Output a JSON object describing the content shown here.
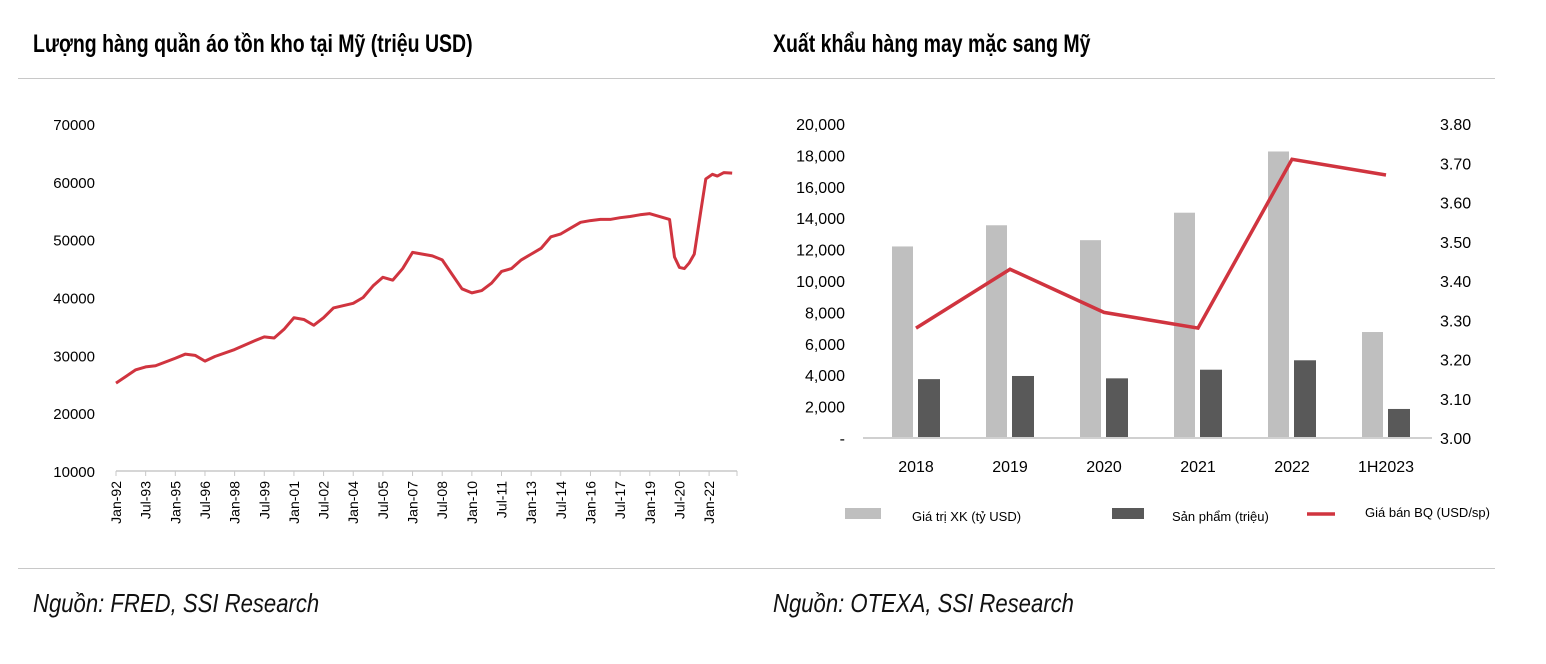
{
  "left": {
    "title": "Lượng hàng quần áo tồn kho tại Mỹ (triệu USD)",
    "source": "Nguồn: FRED, SSI Research"
  },
  "right": {
    "title": "Xuất khẩu hàng may mặc sang Mỹ",
    "source": "Nguồn: OTEXA, SSI Research"
  },
  "chart_data": [
    {
      "type": "line",
      "title": "Lượng hàng quần áo tồn kho tại Mỹ (triệu USD)",
      "ylim": [
        10000,
        70000
      ],
      "yticks": [
        "10000",
        "20000",
        "30000",
        "40000",
        "50000",
        "60000",
        "70000"
      ],
      "xticks": [
        "Jan-92",
        "Jul-93",
        "Jan-95",
        "Jul-96",
        "Jan-98",
        "Jul-99",
        "Jan-01",
        "Jul-02",
        "Jan-04",
        "Jul-05",
        "Jan-07",
        "Jul-08",
        "Jan-10",
        "Jul-11",
        "Jan-13",
        "Jul-14",
        "Jan-16",
        "Jul-17",
        "Jan-19",
        "Jul-20",
        "Jan-22"
      ],
      "grid": false,
      "color": "#d0343f",
      "points": [
        [
          "1992-01",
          25200
        ],
        [
          "1993-01",
          27500
        ],
        [
          "1993-07",
          28000
        ],
        [
          "1994-01",
          28200
        ],
        [
          "1995-01",
          29500
        ],
        [
          "1995-07",
          30200
        ],
        [
          "1996-01",
          30000
        ],
        [
          "1996-07",
          29000
        ],
        [
          "1997-01",
          29800
        ],
        [
          "1998-01",
          31000
        ],
        [
          "1999-01",
          32500
        ],
        [
          "1999-07",
          33200
        ],
        [
          "2000-01",
          33000
        ],
        [
          "2000-07",
          34500
        ],
        [
          "2001-01",
          36500
        ],
        [
          "2001-07",
          36200
        ],
        [
          "2002-01",
          35200
        ],
        [
          "2002-07",
          36500
        ],
        [
          "2003-01",
          38200
        ],
        [
          "2004-01",
          39000
        ],
        [
          "2004-07",
          40000
        ],
        [
          "2005-01",
          42000
        ],
        [
          "2005-07",
          43500
        ],
        [
          "2006-01",
          43000
        ],
        [
          "2006-07",
          45000
        ],
        [
          "2007-01",
          47800
        ],
        [
          "2007-07",
          47500
        ],
        [
          "2008-01",
          47200
        ],
        [
          "2008-07",
          46500
        ],
        [
          "2009-01",
          44000
        ],
        [
          "2009-07",
          41500
        ],
        [
          "2010-01",
          40800
        ],
        [
          "2010-07",
          41200
        ],
        [
          "2011-01",
          42500
        ],
        [
          "2011-07",
          44500
        ],
        [
          "2012-01",
          45000
        ],
        [
          "2012-07",
          46500
        ],
        [
          "2013-01",
          47500
        ],
        [
          "2013-07",
          48500
        ],
        [
          "2014-01",
          50500
        ],
        [
          "2014-07",
          51000
        ],
        [
          "2015-01",
          52000
        ],
        [
          "2015-07",
          53000
        ],
        [
          "2016-01",
          53300
        ],
        [
          "2016-07",
          53500
        ],
        [
          "2017-01",
          53500
        ],
        [
          "2017-07",
          53800
        ],
        [
          "2018-01",
          54000
        ],
        [
          "2018-07",
          54300
        ],
        [
          "2019-01",
          54500
        ],
        [
          "2019-07",
          54000
        ],
        [
          "2020-01",
          53500
        ],
        [
          "2020-04",
          47000
        ],
        [
          "2020-07",
          45200
        ],
        [
          "2020-10",
          45000
        ],
        [
          "2021-01",
          46000
        ],
        [
          "2021-04",
          47500
        ],
        [
          "2021-08",
          55000
        ],
        [
          "2021-11",
          60500
        ],
        [
          "2022-03",
          61300
        ],
        [
          "2022-06",
          61000
        ],
        [
          "2022-10",
          61600
        ],
        [
          "2023-03",
          61500
        ]
      ]
    },
    {
      "type": "bar",
      "title": "Xuất khẩu hàng may mặc sang Mỹ",
      "categories": [
        "2018",
        "2019",
        "2020",
        "2021",
        "2022",
        "1H2023"
      ],
      "ylim": [
        0,
        20000
      ],
      "yticks": [
        "-",
        "2,000",
        "4,000",
        "6,000",
        "8,000",
        "10,000",
        "12,000",
        "14,000",
        "16,000",
        "18,000",
        "20,000"
      ],
      "y2lim": [
        3.0,
        3.8
      ],
      "y2ticks": [
        "3.00",
        "3.10",
        "3.20",
        "3.30",
        "3.40",
        "3.50",
        "3.60",
        "3.70",
        "3.80"
      ],
      "grid": false,
      "legend_position": "bottom",
      "series": [
        {
          "name": "Giá trị XK (tỷ USD)",
          "type": "bar",
          "axis": "left",
          "color": "#bfbfbf",
          "values": [
            12200,
            13550,
            12600,
            14350,
            18250,
            6750
          ]
        },
        {
          "name": "Sản phẩm (triệu)",
          "type": "bar",
          "axis": "left",
          "color": "#595959",
          "values": [
            3750,
            3950,
            3800,
            4350,
            4950,
            1850
          ]
        },
        {
          "name": "Giá bán BQ (USD/sp)",
          "type": "line",
          "axis": "right",
          "color": "#d0343f",
          "values": [
            3.28,
            3.43,
            3.32,
            3.28,
            3.71,
            3.67
          ]
        }
      ]
    }
  ]
}
